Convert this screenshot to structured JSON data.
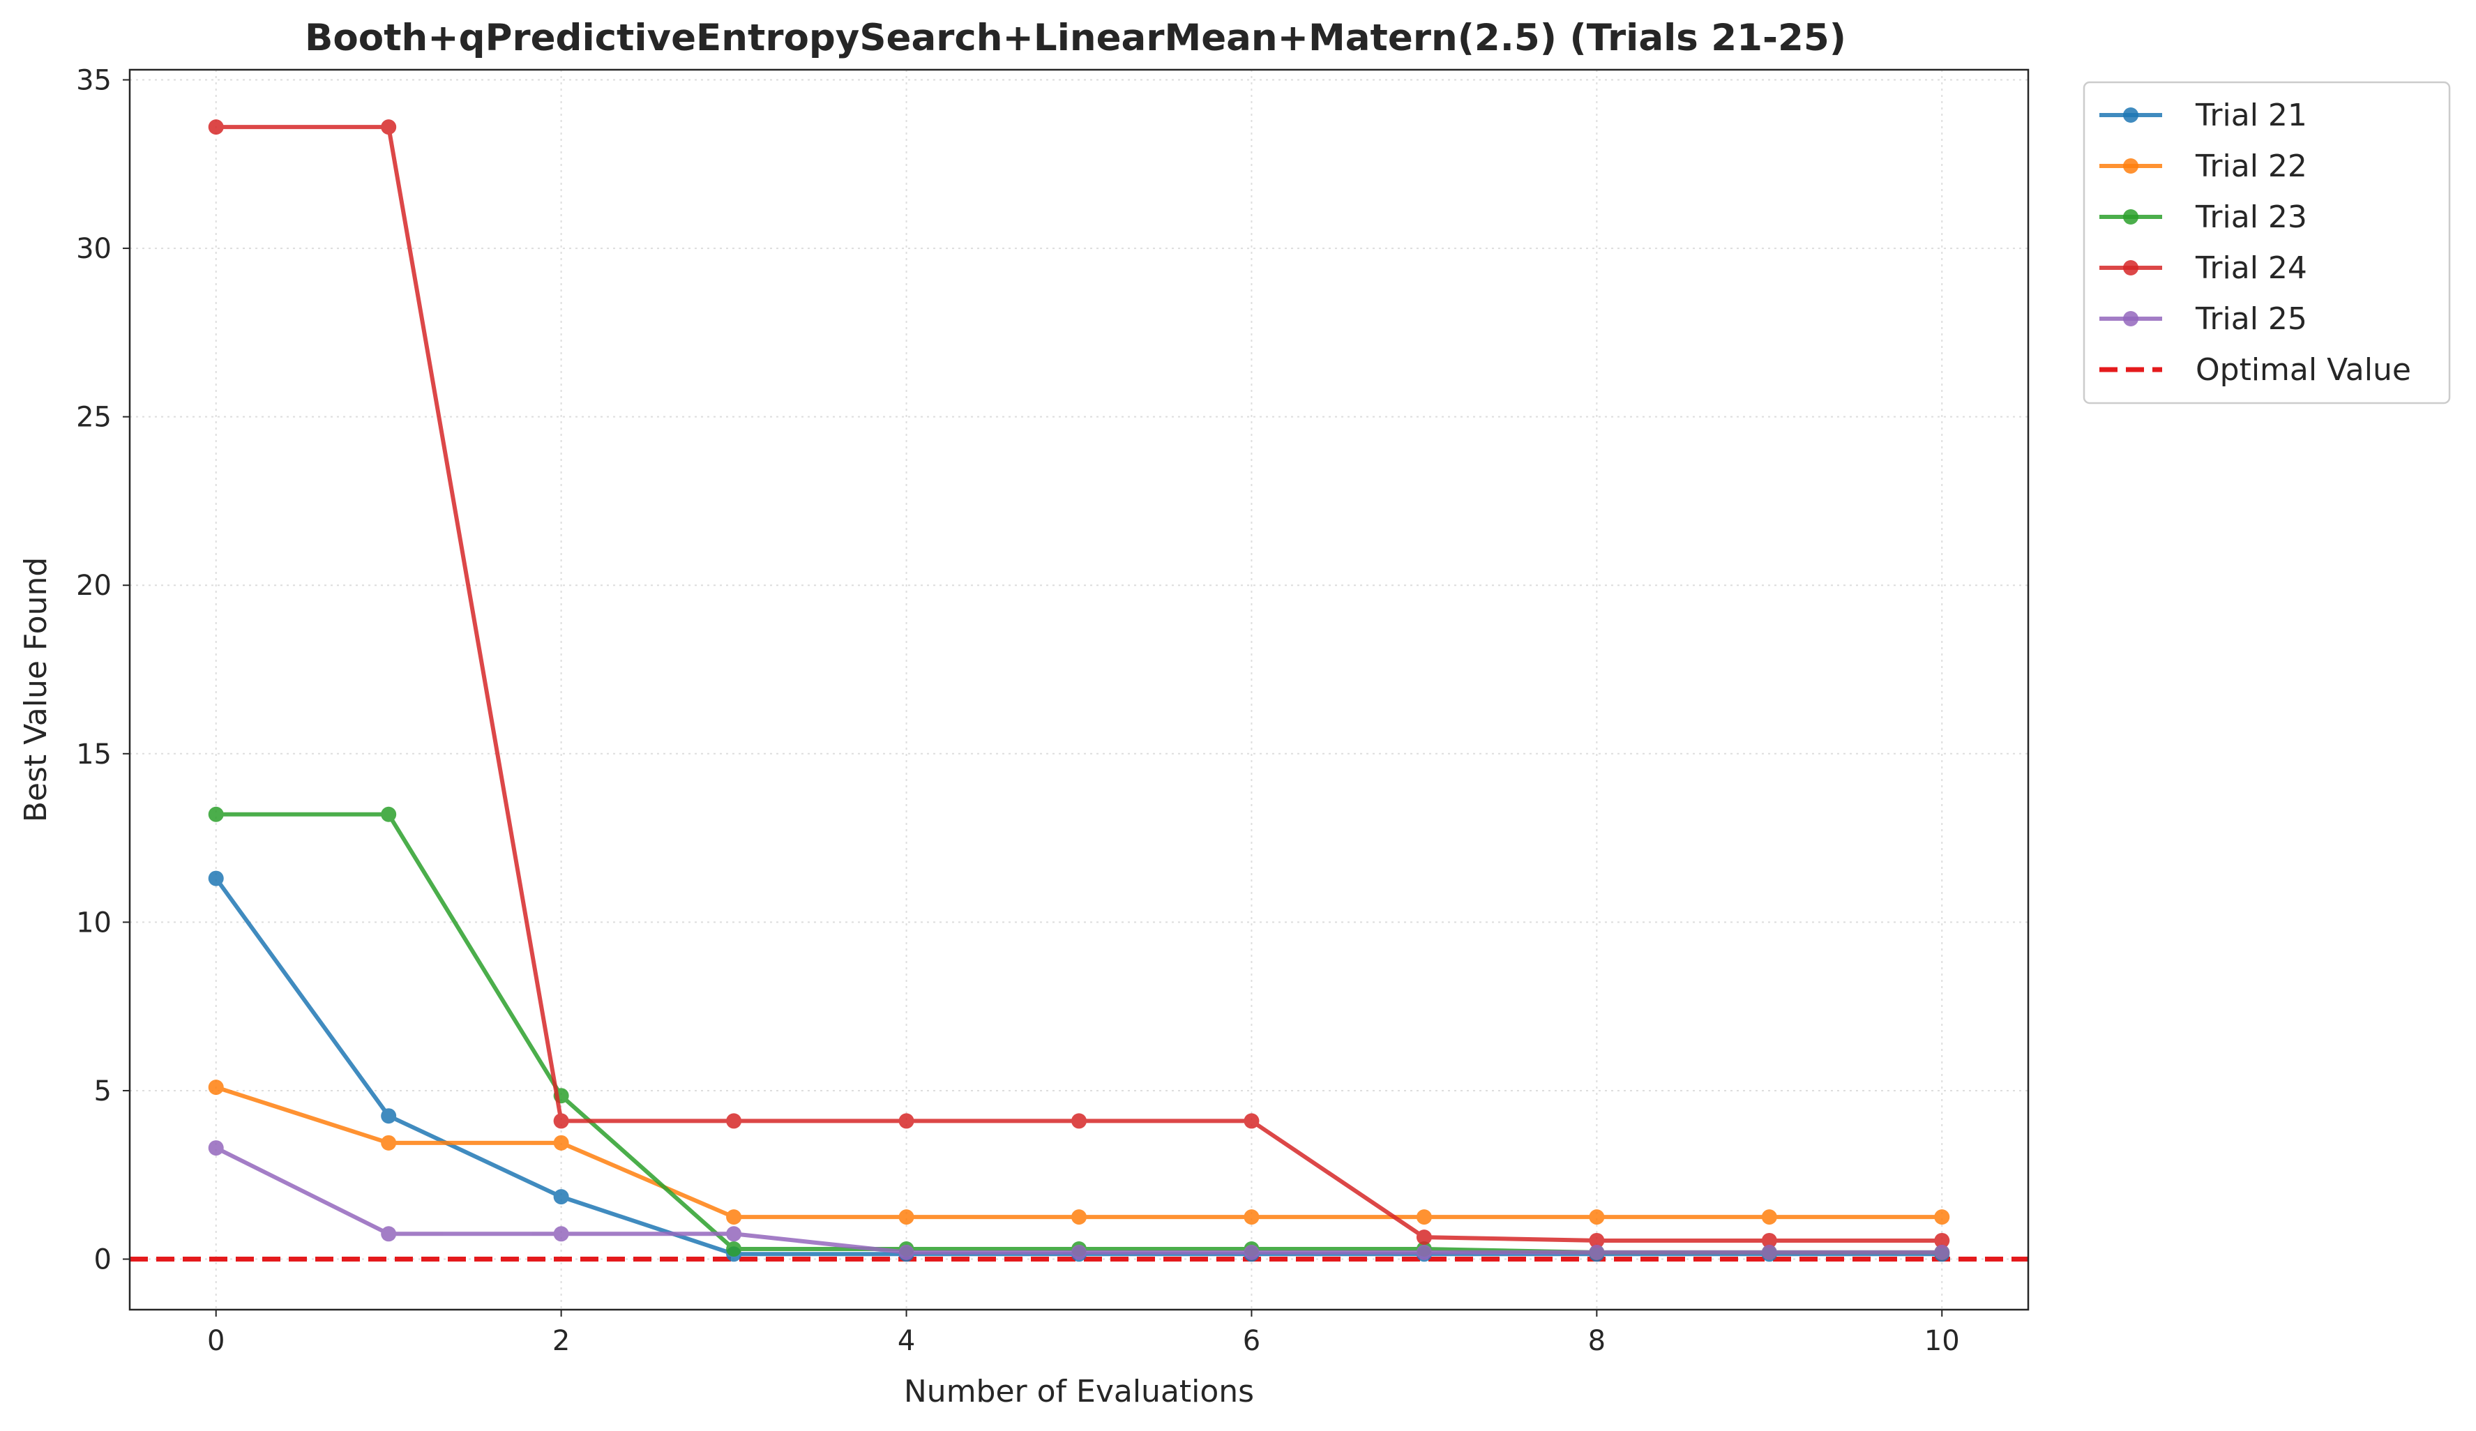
{
  "chart_data": {
    "type": "line",
    "title": "Booth+qPredictiveEntropySearch+LinearMean+Matern(2.5) (Trials 21-25)",
    "xlabel": "Number of Evaluations",
    "ylabel": "Best Value Found",
    "xlim": [
      -0.5,
      10.5
    ],
    "ylim": [
      -1.5,
      35.3
    ],
    "xticks": [
      0,
      2,
      4,
      6,
      8,
      10
    ],
    "yticks": [
      0,
      5,
      10,
      15,
      20,
      25,
      30,
      35
    ],
    "grid": true,
    "legend_position": "outside-top-right",
    "x": [
      0,
      1,
      2,
      3,
      4,
      5,
      6,
      7,
      8,
      9,
      10
    ],
    "series": [
      {
        "name": "Trial 21",
        "color": "#1f77b4",
        "values": [
          11.3,
          4.25,
          1.85,
          0.15,
          0.15,
          0.15,
          0.15,
          0.15,
          0.15,
          0.15,
          0.15
        ]
      },
      {
        "name": "Trial 22",
        "color": "#ff7f0e",
        "values": [
          5.1,
          3.45,
          3.45,
          1.25,
          1.25,
          1.25,
          1.25,
          1.25,
          1.25,
          1.25,
          1.25
        ]
      },
      {
        "name": "Trial 23",
        "color": "#2ca02c",
        "values": [
          13.2,
          13.2,
          4.85,
          0.3,
          0.3,
          0.3,
          0.3,
          0.3,
          0.2,
          0.2,
          0.2
        ]
      },
      {
        "name": "Trial 24",
        "color": "#d62728",
        "values": [
          33.6,
          33.6,
          4.1,
          4.1,
          4.1,
          4.1,
          4.1,
          0.65,
          0.55,
          0.55,
          0.55
        ]
      },
      {
        "name": "Trial 25",
        "color": "#9467bd",
        "values": [
          3.3,
          0.75,
          0.75,
          0.75,
          0.2,
          0.2,
          0.2,
          0.2,
          0.2,
          0.2,
          0.2
        ]
      }
    ],
    "reference_line": {
      "name": "Optimal Value",
      "y": 0,
      "color": "#e41a1c",
      "style": "dashed"
    }
  }
}
